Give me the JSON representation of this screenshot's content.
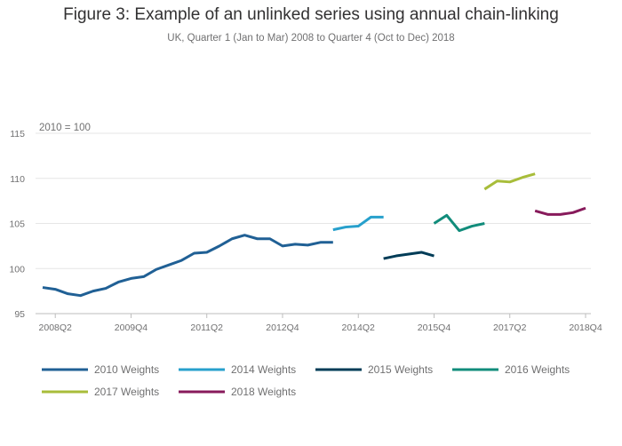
{
  "title": "Figure 3: Example of an unlinked series using annual chain-linking",
  "subtitle": "UK, Quarter 1 (Jan to Mar) 2008 to Quarter 4 (Oct to Dec) 2018",
  "chart_data": {
    "type": "line",
    "ylabel": "2010 = 100",
    "ylim": [
      95,
      115
    ],
    "yticks": [
      95,
      100,
      105,
      110,
      115
    ],
    "grid": true,
    "legend_position": "bottom",
    "xlim": [
      0,
      43
    ],
    "x_tick_indices": [
      1,
      7,
      13,
      19,
      25,
      31,
      37,
      43
    ],
    "x_tick_labels": [
      "2008Q2",
      "2009Q4",
      "2011Q2",
      "2012Q4",
      "2014Q2",
      "2015Q4",
      "2017Q2",
      "2018Q4"
    ],
    "series": [
      {
        "name": "2010 Weights",
        "color": "#206095",
        "start_index": 0,
        "values": [
          97.9,
          97.7,
          97.2,
          97.0,
          97.5,
          97.8,
          98.5,
          98.9,
          99.1,
          99.9,
          100.4,
          100.9,
          101.7,
          101.8,
          102.5,
          103.3,
          103.7,
          103.3,
          103.3,
          102.5,
          102.7,
          102.6,
          102.9,
          102.9
        ]
      },
      {
        "name": "2014 Weights",
        "color": "#27a0cc",
        "start_index": 23,
        "values": [
          104.3,
          104.6,
          104.7,
          105.7,
          105.7
        ]
      },
      {
        "name": "2015 Weights",
        "color": "#003c57",
        "start_index": 27,
        "values": [
          101.1,
          101.4,
          101.6,
          101.8,
          101.4
        ]
      },
      {
        "name": "2016 Weights",
        "color": "#118c7b",
        "start_index": 31,
        "values": [
          105.0,
          105.9,
          104.2,
          104.7,
          105.0
        ]
      },
      {
        "name": "2017 Weights",
        "color": "#a8bd3a",
        "start_index": 35,
        "values": [
          108.8,
          109.7,
          109.6,
          110.1,
          110.5
        ]
      },
      {
        "name": "2018 Weights",
        "color": "#871a5b",
        "start_index": 39,
        "values": [
          106.4,
          106.0,
          106.0,
          106.2,
          106.7
        ]
      }
    ]
  }
}
